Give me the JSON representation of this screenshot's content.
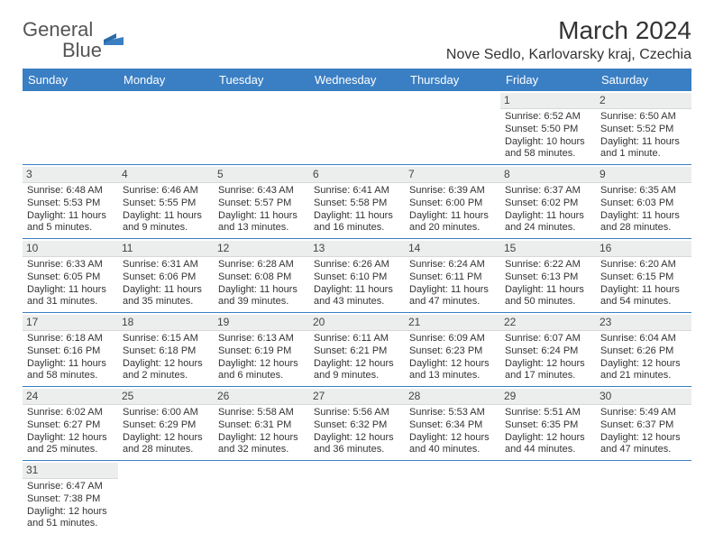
{
  "logo": {
    "word1": "General",
    "word2": "Blue"
  },
  "title": "March 2024",
  "location": "Nove Sedlo, Karlovarsky kraj, Czechia",
  "colors": {
    "header_bg": "#3a7fc4",
    "daynum_bg": "#eceded",
    "text": "#333333"
  },
  "day_headers": [
    "Sunday",
    "Monday",
    "Tuesday",
    "Wednesday",
    "Thursday",
    "Friday",
    "Saturday"
  ],
  "weeks": [
    [
      null,
      null,
      null,
      null,
      null,
      {
        "n": "1",
        "sr": "Sunrise: 6:52 AM",
        "ss": "Sunset: 5:50 PM",
        "dl": "Daylight: 10 hours and 58 minutes."
      },
      {
        "n": "2",
        "sr": "Sunrise: 6:50 AM",
        "ss": "Sunset: 5:52 PM",
        "dl": "Daylight: 11 hours and 1 minute."
      }
    ],
    [
      {
        "n": "3",
        "sr": "Sunrise: 6:48 AM",
        "ss": "Sunset: 5:53 PM",
        "dl": "Daylight: 11 hours and 5 minutes."
      },
      {
        "n": "4",
        "sr": "Sunrise: 6:46 AM",
        "ss": "Sunset: 5:55 PM",
        "dl": "Daylight: 11 hours and 9 minutes."
      },
      {
        "n": "5",
        "sr": "Sunrise: 6:43 AM",
        "ss": "Sunset: 5:57 PM",
        "dl": "Daylight: 11 hours and 13 minutes."
      },
      {
        "n": "6",
        "sr": "Sunrise: 6:41 AM",
        "ss": "Sunset: 5:58 PM",
        "dl": "Daylight: 11 hours and 16 minutes."
      },
      {
        "n": "7",
        "sr": "Sunrise: 6:39 AM",
        "ss": "Sunset: 6:00 PM",
        "dl": "Daylight: 11 hours and 20 minutes."
      },
      {
        "n": "8",
        "sr": "Sunrise: 6:37 AM",
        "ss": "Sunset: 6:02 PM",
        "dl": "Daylight: 11 hours and 24 minutes."
      },
      {
        "n": "9",
        "sr": "Sunrise: 6:35 AM",
        "ss": "Sunset: 6:03 PM",
        "dl": "Daylight: 11 hours and 28 minutes."
      }
    ],
    [
      {
        "n": "10",
        "sr": "Sunrise: 6:33 AM",
        "ss": "Sunset: 6:05 PM",
        "dl": "Daylight: 11 hours and 31 minutes."
      },
      {
        "n": "11",
        "sr": "Sunrise: 6:31 AM",
        "ss": "Sunset: 6:06 PM",
        "dl": "Daylight: 11 hours and 35 minutes."
      },
      {
        "n": "12",
        "sr": "Sunrise: 6:28 AM",
        "ss": "Sunset: 6:08 PM",
        "dl": "Daylight: 11 hours and 39 minutes."
      },
      {
        "n": "13",
        "sr": "Sunrise: 6:26 AM",
        "ss": "Sunset: 6:10 PM",
        "dl": "Daylight: 11 hours and 43 minutes."
      },
      {
        "n": "14",
        "sr": "Sunrise: 6:24 AM",
        "ss": "Sunset: 6:11 PM",
        "dl": "Daylight: 11 hours and 47 minutes."
      },
      {
        "n": "15",
        "sr": "Sunrise: 6:22 AM",
        "ss": "Sunset: 6:13 PM",
        "dl": "Daylight: 11 hours and 50 minutes."
      },
      {
        "n": "16",
        "sr": "Sunrise: 6:20 AM",
        "ss": "Sunset: 6:15 PM",
        "dl": "Daylight: 11 hours and 54 minutes."
      }
    ],
    [
      {
        "n": "17",
        "sr": "Sunrise: 6:18 AM",
        "ss": "Sunset: 6:16 PM",
        "dl": "Daylight: 11 hours and 58 minutes."
      },
      {
        "n": "18",
        "sr": "Sunrise: 6:15 AM",
        "ss": "Sunset: 6:18 PM",
        "dl": "Daylight: 12 hours and 2 minutes."
      },
      {
        "n": "19",
        "sr": "Sunrise: 6:13 AM",
        "ss": "Sunset: 6:19 PM",
        "dl": "Daylight: 12 hours and 6 minutes."
      },
      {
        "n": "20",
        "sr": "Sunrise: 6:11 AM",
        "ss": "Sunset: 6:21 PM",
        "dl": "Daylight: 12 hours and 9 minutes."
      },
      {
        "n": "21",
        "sr": "Sunrise: 6:09 AM",
        "ss": "Sunset: 6:23 PM",
        "dl": "Daylight: 12 hours and 13 minutes."
      },
      {
        "n": "22",
        "sr": "Sunrise: 6:07 AM",
        "ss": "Sunset: 6:24 PM",
        "dl": "Daylight: 12 hours and 17 minutes."
      },
      {
        "n": "23",
        "sr": "Sunrise: 6:04 AM",
        "ss": "Sunset: 6:26 PM",
        "dl": "Daylight: 12 hours and 21 minutes."
      }
    ],
    [
      {
        "n": "24",
        "sr": "Sunrise: 6:02 AM",
        "ss": "Sunset: 6:27 PM",
        "dl": "Daylight: 12 hours and 25 minutes."
      },
      {
        "n": "25",
        "sr": "Sunrise: 6:00 AM",
        "ss": "Sunset: 6:29 PM",
        "dl": "Daylight: 12 hours and 28 minutes."
      },
      {
        "n": "26",
        "sr": "Sunrise: 5:58 AM",
        "ss": "Sunset: 6:31 PM",
        "dl": "Daylight: 12 hours and 32 minutes."
      },
      {
        "n": "27",
        "sr": "Sunrise: 5:56 AM",
        "ss": "Sunset: 6:32 PM",
        "dl": "Daylight: 12 hours and 36 minutes."
      },
      {
        "n": "28",
        "sr": "Sunrise: 5:53 AM",
        "ss": "Sunset: 6:34 PM",
        "dl": "Daylight: 12 hours and 40 minutes."
      },
      {
        "n": "29",
        "sr": "Sunrise: 5:51 AM",
        "ss": "Sunset: 6:35 PM",
        "dl": "Daylight: 12 hours and 44 minutes."
      },
      {
        "n": "30",
        "sr": "Sunrise: 5:49 AM",
        "ss": "Sunset: 6:37 PM",
        "dl": "Daylight: 12 hours and 47 minutes."
      }
    ],
    [
      {
        "n": "31",
        "sr": "Sunrise: 6:47 AM",
        "ss": "Sunset: 7:38 PM",
        "dl": "Daylight: 12 hours and 51 minutes."
      },
      null,
      null,
      null,
      null,
      null,
      null
    ]
  ]
}
